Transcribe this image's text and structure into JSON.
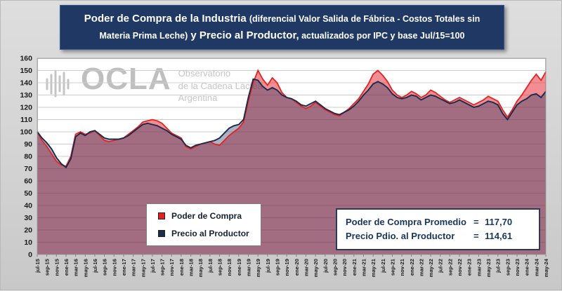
{
  "title": {
    "part1": "Poder de Compra de la Industria ",
    "part2": "(diferencial Valor Salida de Fábrica - Costos Totales sin Materia Prima Leche)",
    "part3": " y Precio al Productor,",
    "part4": " actualizados por IPC y base Jul/15=100"
  },
  "watermark": {
    "brand": "OCLA",
    "line1": "Observatorio",
    "line2": "de la Cadena Láctea",
    "line3": "Argentina"
  },
  "legend": {
    "items": [
      {
        "label": "Poder de Compra",
        "color": "#E02424"
      },
      {
        "label": "Precio al Productor",
        "color": "#1B2B4B"
      }
    ]
  },
  "stats": {
    "rows": [
      {
        "label": "Poder de Compra Promedio",
        "eq": "=",
        "value": "117,70"
      },
      {
        "label": "Precio Pdio. al Productor",
        "eq": "=",
        "value": "114,61"
      }
    ]
  },
  "chart_data": {
    "type": "area",
    "title": "Poder de Compra de la Industria y Precio al Productor, actualizados por IPC y base Jul/15=100",
    "xlabel": "",
    "ylabel": "",
    "ylim": [
      0,
      160
    ],
    "ytick_step": 10,
    "xtick_every": 2,
    "grid": true,
    "legend_position": "inside-bottom-left",
    "colors": {
      "red_line": "#E02424",
      "red_fill": "rgba(230,30,40,0.50)",
      "navy_line": "#1B2B4B",
      "navy_fill": "rgba(31,56,100,0.38)",
      "gridline": "#cccccc",
      "axis_text": "#1a1a1a"
    },
    "x": [
      "jul-15",
      "ago-15",
      "sep-15",
      "oct-15",
      "nov-15",
      "dic-15",
      "ene-16",
      "feb-16",
      "mar-16",
      "abr-16",
      "may-16",
      "jun-16",
      "jul-16",
      "ago-16",
      "sep-16",
      "oct-16",
      "nov-16",
      "dic-16",
      "ene-17",
      "feb-17",
      "mar-17",
      "abr-17",
      "may-17",
      "jun-17",
      "jul-17",
      "ago-17",
      "sep-17",
      "oct-17",
      "nov-17",
      "dic-17",
      "ene-18",
      "feb-18",
      "mar-18",
      "abr-18",
      "may-18",
      "jun-18",
      "jul-18",
      "ago-18",
      "sep-18",
      "oct-18",
      "nov-18",
      "dic-18",
      "ene-19",
      "feb-19",
      "mar-19",
      "abr-19",
      "may-19",
      "jun-19",
      "jul-19",
      "ago-19",
      "sep-19",
      "oct-19",
      "nov-19",
      "dic-19",
      "ene-20",
      "feb-20",
      "mar-20",
      "abr-20",
      "may-20",
      "jun-20",
      "jul-20",
      "ago-20",
      "sep-20",
      "oct-20",
      "nov-20",
      "dic-20",
      "ene-21",
      "feb-21",
      "mar-21",
      "abr-21",
      "may-21",
      "jun-21",
      "jul-21",
      "ago-21",
      "sep-21",
      "oct-21",
      "nov-21",
      "dic-21",
      "ene-22",
      "feb-22",
      "mar-22",
      "abr-22",
      "may-22",
      "jun-22",
      "jul-22",
      "ago-22",
      "sep-22",
      "oct-22",
      "nov-22",
      "dic-22",
      "ene-23",
      "feb-23",
      "mar-23",
      "abr-23",
      "may-23",
      "jun-23",
      "jul-23",
      "ago-23",
      "sep-23",
      "oct-23",
      "nov-23",
      "dic-23",
      "ene-24",
      "feb-24",
      "mar-24",
      "abr-24",
      "may-24"
    ],
    "series": [
      {
        "name": "Poder de Compra",
        "values": [
          100,
          93,
          88,
          82,
          76,
          73,
          72,
          80,
          98,
          100,
          98,
          99,
          101,
          97,
          93,
          92,
          93,
          94,
          95,
          98,
          101,
          104,
          108,
          109,
          110,
          109,
          107,
          103,
          99,
          97,
          95,
          88,
          86,
          88,
          90,
          91,
          92,
          90,
          89,
          93,
          97,
          100,
          103,
          108,
          125,
          140,
          150,
          143,
          138,
          144,
          140,
          132,
          128,
          127,
          124,
          121,
          119,
          121,
          124,
          121,
          118,
          116,
          114,
          113,
          116,
          119,
          123,
          127,
          133,
          139,
          147,
          150,
          146,
          141,
          134,
          130,
          128,
          130,
          133,
          131,
          128,
          130,
          134,
          132,
          129,
          126,
          124,
          126,
          128,
          126,
          124,
          122,
          124,
          126,
          129,
          127,
          125,
          118,
          112,
          118,
          125,
          130,
          136,
          142,
          147,
          142,
          149
        ]
      },
      {
        "name": "Precio al Productor",
        "values": [
          100,
          95,
          91,
          86,
          79,
          74,
          71,
          78,
          96,
          99,
          97,
          100,
          101,
          98,
          95,
          94,
          94,
          94,
          95,
          97,
          100,
          103,
          106,
          107,
          106,
          105,
          103,
          101,
          98,
          96,
          94,
          89,
          87,
          89,
          90,
          91,
          92,
          93,
          95,
          99,
          103,
          105,
          106,
          110,
          128,
          143,
          142,
          137,
          134,
          136,
          134,
          130,
          128,
          127,
          125,
          122,
          121,
          123,
          125,
          122,
          119,
          117,
          115,
          114,
          116,
          118,
          121,
          125,
          130,
          134,
          139,
          141,
          139,
          136,
          131,
          128,
          127,
          128,
          130,
          129,
          126,
          128,
          130,
          129,
          127,
          125,
          123,
          124,
          126,
          124,
          122,
          120,
          121,
          123,
          125,
          124,
          122,
          115,
          110,
          116,
          122,
          125,
          127,
          130,
          131,
          128,
          133
        ]
      }
    ]
  }
}
